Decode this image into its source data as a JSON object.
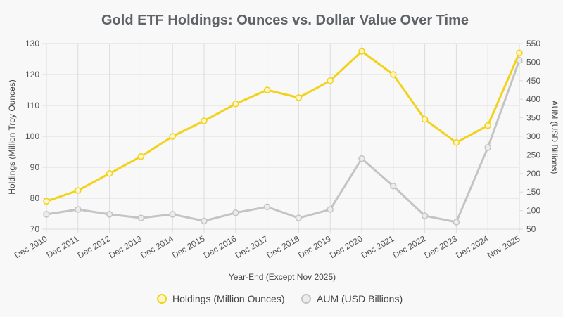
{
  "chart_data": {
    "type": "line",
    "title": "Gold ETF Holdings: Ounces vs. Dollar Value Over Time",
    "xlabel": "Year-End (Except Nov 2025)",
    "ylabel_left": "Holdings (Million Troy Ounces)",
    "ylabel_right": "AUM (USD Billions)",
    "categories": [
      "Dec 2010",
      "Dec 2011",
      "Dec 2012",
      "Dec 2013",
      "Dec 2014",
      "Dec 2015",
      "Dec 2016",
      "Dec 2017",
      "Dec 2018",
      "Dec 2019",
      "Dec 2020",
      "Dec 2021",
      "Dec 2022",
      "Dec 2023",
      "Dec 2024",
      "Nov 2025"
    ],
    "y_left": {
      "min": 70,
      "max": 130,
      "step": 10,
      "ticks": [
        "70",
        "80",
        "90",
        "100",
        "110",
        "120",
        "130"
      ]
    },
    "y_right": {
      "min": 50,
      "max": 550,
      "step": 50,
      "ticks": [
        "50",
        "100",
        "150",
        "200",
        "250",
        "300",
        "350",
        "400",
        "450",
        "500",
        "550"
      ]
    },
    "grid": true,
    "legend_position": "bottom",
    "series": [
      {
        "name": "Holdings (Million Ounces)",
        "axis": "left",
        "color": "#f2d21b",
        "values": [
          79,
          82.5,
          88,
          93.5,
          100,
          105,
          110.5,
          115,
          112.5,
          118,
          127.5,
          120,
          105.5,
          98,
          103.5,
          127
        ]
      },
      {
        "name": "AUM (USD Billions)",
        "axis": "right",
        "color": "#c4c4c4",
        "values": [
          90,
          103,
          90,
          80,
          90,
          72,
          94,
          110,
          80,
          103,
          240,
          166,
          86,
          69,
          270,
          505
        ]
      }
    ]
  }
}
